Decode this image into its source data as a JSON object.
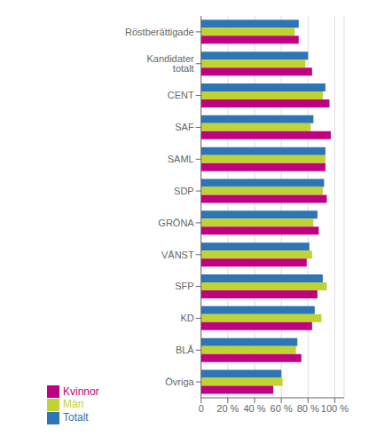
{
  "chart_data": {
    "type": "bar",
    "orientation": "horizontal",
    "categories": [
      "Röstberättigade",
      "Kandidater totalt",
      "CENT",
      "SAF",
      "SAML",
      "SDP",
      "GRÖNA",
      "VÄNST",
      "SFP",
      "KD",
      "BLÅ",
      "Övriga"
    ],
    "series": [
      {
        "name": "Totalt",
        "color": "#2e75b6",
        "values": [
          73,
          80,
          93,
          84,
          93,
          92,
          87,
          81,
          91,
          85,
          72,
          60
        ]
      },
      {
        "name": "Män",
        "color": "#c0d330",
        "values": [
          70,
          78,
          91,
          82,
          93,
          91,
          84,
          83,
          94,
          90,
          71,
          61
        ]
      },
      {
        "name": "Kvinnor",
        "color": "#c00080",
        "values": [
          73,
          83,
          96,
          97,
          93,
          94,
          88,
          79,
          87,
          83,
          75,
          54
        ]
      }
    ],
    "xlim": [
      0,
      107
    ],
    "xticks": [
      0,
      {
        "value": 20,
        "label": "20 %"
      },
      {
        "value": 40,
        "label": "40 %"
      },
      {
        "value": 60,
        "label": "60 %"
      },
      {
        "value": 80,
        "label": "80 %"
      },
      {
        "value": 100,
        "label": "100 %"
      }
    ],
    "grid": true,
    "legend": "bottom"
  }
}
